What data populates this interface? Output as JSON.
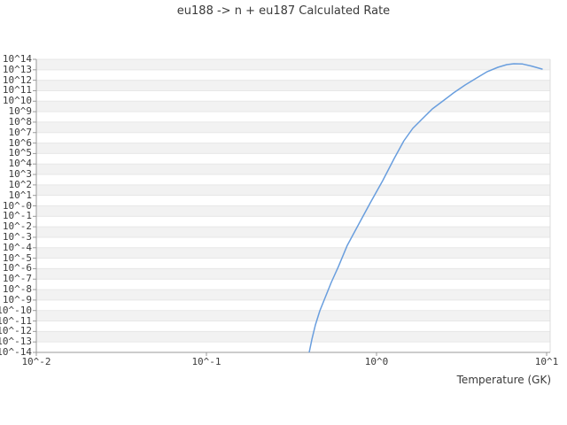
{
  "figure": {
    "title": "eu188 -> n + eu187 Calculated Rate",
    "x_axis_label": "Temperature (GK)"
  },
  "axes": {
    "x_tick_labels": [
      "10^-2",
      "10^-1",
      "10^0",
      "10^1"
    ],
    "x_tick_log_values": [
      -2,
      -1,
      0,
      1
    ],
    "y_tick_labels": [
      "10^14",
      "10^13",
      "10^12",
      "10^11",
      "10^10",
      "10^9",
      "10^8",
      "10^7",
      "10^6",
      "10^5",
      "10^4",
      "10^3",
      "10^2",
      "10^1",
      "10^-0",
      "10^-1",
      "10^-2",
      "10^-3",
      "10^-4",
      "10^-5",
      "10^-6",
      "10^-7",
      "10^-8",
      "10^-9",
      "10^-10",
      "10^-11",
      "10^-12",
      "10^-13",
      "10^-14"
    ],
    "y_tick_log_values": [
      14,
      13,
      12,
      11,
      10,
      9,
      8,
      7,
      6,
      5,
      4,
      3,
      2,
      1,
      0,
      -1,
      -2,
      -3,
      -4,
      -5,
      -6,
      -7,
      -8,
      -9,
      -10,
      -11,
      -12,
      -13,
      -14
    ]
  },
  "colors": {
    "line": "#699ede",
    "band_fill": "#f2f2f2",
    "grid_line": "#e7e7e7",
    "plot_edge": "#dcdcdc",
    "axis_line": "#999999",
    "text": "#3b3b3b"
  },
  "chart_data": {
    "type": "line",
    "title": "eu188 -> n + eu187 Calculated Rate",
    "xlabel": "Temperature (GK)",
    "ylabel": "",
    "x_scale": "log",
    "y_scale": "log",
    "xlim": [
      0.01,
      10.5
    ],
    "ylim": [
      1e-14,
      100000000000000.0
    ],
    "grid": "horizontal alternating decade bands, light gray",
    "legend": "none",
    "series": [
      {
        "name": "calculated rate",
        "x_temperature_GK": [
          0.402,
          0.417,
          0.437,
          0.464,
          0.499,
          0.542,
          0.597,
          0.673,
          0.787,
          0.919,
          1.088,
          1.271,
          1.449,
          1.634,
          1.841,
          2.128,
          2.459,
          2.839,
          3.318,
          3.882,
          4.477,
          5.171,
          5.828,
          6.412,
          7.228,
          8.15,
          9.41
        ],
        "log10_rate": [
          -14.0,
          -12.73,
          -11.38,
          -10.02,
          -8.76,
          -7.32,
          -5.8,
          -3.77,
          -1.73,
          0.3,
          2.41,
          4.53,
          6.22,
          7.4,
          8.25,
          9.26,
          10.02,
          10.79,
          11.55,
          12.22,
          12.82,
          13.24,
          13.49,
          13.58,
          13.55,
          13.36,
          13.07
        ]
      }
    ]
  }
}
